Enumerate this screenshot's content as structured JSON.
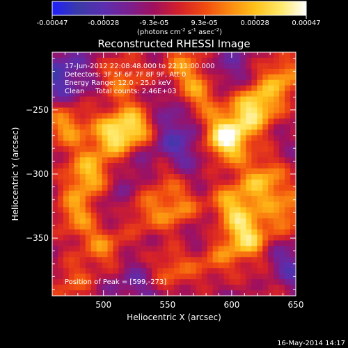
{
  "chart_data": {
    "type": "heatmap",
    "title": "Reconstructed RHESSI Image",
    "xlabel": "Heliocentric X (arcsec)",
    "ylabel": "Heliocentric Y (arcsec)",
    "xlim": [
      460,
      650
    ],
    "ylim": [
      -395,
      -205
    ],
    "x_ticks": [
      500,
      550,
      600,
      650
    ],
    "y_ticks": [
      -250,
      -300,
      -350
    ],
    "colorbar": {
      "range": [
        -0.00047,
        0.00047
      ],
      "tick_values": [
        -0.00047,
        -0.00028,
        -9.3e-05,
        9.3e-05,
        0.00028,
        0.00047
      ],
      "tick_labels": [
        "-0.00047",
        "-0.00028",
        "-9.3e-05",
        "9.3e-05",
        "0.00028",
        "0.00047"
      ],
      "unit_prefix": "(photons cm",
      "unit_exp1": "-2",
      "unit_mid": " s",
      "unit_exp2": "-1",
      "unit_mid2": " asec",
      "unit_exp3": "-2",
      "unit_suffix": ")",
      "colors": [
        "#1f1fff",
        "#3a3aa8",
        "#5a2fb0",
        "#7a1f90",
        "#a0105e",
        "#d4202a",
        "#f04a10",
        "#fb8a10",
        "#ffc21a",
        "#ffe96a",
        "#ffffff"
      ]
    },
    "annotations": [
      "17-Jun-2012 22:08:48.000 to 22:11:00.000",
      "Detectors: 3F 5F 6F 7F 8F 9F, Att 0",
      "Energy Range: 12.0 - 25.0 keV",
      "Clean     Total counts: 2.46E+03"
    ],
    "peak_label": "Position of Peak = [599,-273]",
    "peak": [
      599,
      -273
    ],
    "bright_sources": [
      {
        "x": 596,
        "y": -272,
        "amp": 1.0
      },
      {
        "x": 618,
        "y": -248,
        "amp": 0.82
      },
      {
        "x": 575,
        "y": -238,
        "amp": 0.55
      },
      {
        "x": 640,
        "y": -225,
        "amp": 0.55
      },
      {
        "x": 562,
        "y": -215,
        "amp": 0.45
      },
      {
        "x": 508,
        "y": -270,
        "amp": 0.7
      },
      {
        "x": 528,
        "y": -262,
        "amp": 0.62
      },
      {
        "x": 488,
        "y": -300,
        "amp": 0.65
      },
      {
        "x": 480,
        "y": -330,
        "amp": 0.55
      },
      {
        "x": 500,
        "y": -355,
        "amp": 0.5
      },
      {
        "x": 470,
        "y": -262,
        "amp": 0.55
      },
      {
        "x": 515,
        "y": -225,
        "amp": 0.45
      },
      {
        "x": 545,
        "y": -300,
        "amp": 0.5
      },
      {
        "x": 560,
        "y": -330,
        "amp": 0.55
      },
      {
        "x": 552,
        "y": -375,
        "amp": 0.45
      },
      {
        "x": 600,
        "y": -325,
        "amp": 0.62
      },
      {
        "x": 612,
        "y": -350,
        "amp": 0.75
      },
      {
        "x": 625,
        "y": -305,
        "amp": 0.6
      },
      {
        "x": 645,
        "y": -330,
        "amp": 0.5
      },
      {
        "x": 585,
        "y": -365,
        "amp": 0.42
      },
      {
        "x": 630,
        "y": -385,
        "amp": 0.35
      },
      {
        "x": 475,
        "y": -385,
        "amp": 0.35
      },
      {
        "x": 530,
        "y": -330,
        "amp": 0.4
      }
    ],
    "dark_sources": [
      {
        "x": 465,
        "y": -225,
        "amp": 0.55
      },
      {
        "x": 535,
        "y": -295,
        "amp": 0.5
      },
      {
        "x": 548,
        "y": -252,
        "amp": 0.4
      },
      {
        "x": 560,
        "y": -280,
        "amp": 0.45
      },
      {
        "x": 640,
        "y": -375,
        "amp": 0.6
      },
      {
        "x": 575,
        "y": -345,
        "amp": 0.45
      },
      {
        "x": 595,
        "y": -225,
        "amp": 0.35
      },
      {
        "x": 505,
        "y": -330,
        "amp": 0.35
      },
      {
        "x": 530,
        "y": -385,
        "amp": 0.3
      }
    ]
  },
  "footer_timestamp": "16-May-2014 14:17"
}
